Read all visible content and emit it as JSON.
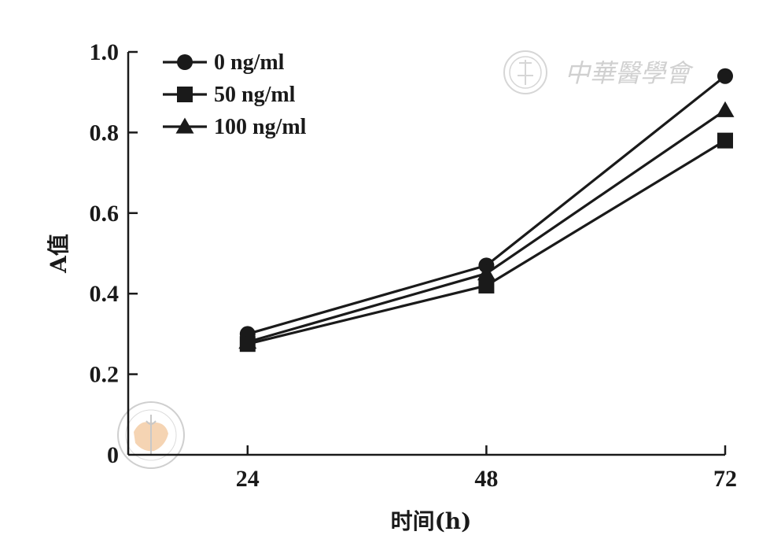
{
  "chart_data": {
    "type": "line",
    "x": [
      24,
      48,
      72
    ],
    "xlabel": "时间(h)",
    "ylabel": "A值",
    "ylim": [
      0,
      1.0
    ],
    "x_ticks": [
      "24",
      "48",
      "72"
    ],
    "y_ticks": [
      "0",
      "0.2",
      "0.4",
      "0.6",
      "0.8",
      "1.0"
    ],
    "legend_position": "top-left",
    "grid": false,
    "series": [
      {
        "name": "0 ng/ml",
        "marker": "circle",
        "values": [
          0.3,
          0.47,
          0.94
        ]
      },
      {
        "name": "50 ng/ml",
        "marker": "square",
        "values": [
          0.275,
          0.42,
          0.78
        ]
      },
      {
        "name": "100 ng/ml",
        "marker": "triangle",
        "values": [
          0.28,
          0.45,
          0.855
        ]
      }
    ]
  },
  "watermark": {
    "text": "中華醫學會",
    "logo": "chinese-medical-association-seal",
    "color": "#cccccc",
    "accent_color": "#f2c9a0"
  }
}
